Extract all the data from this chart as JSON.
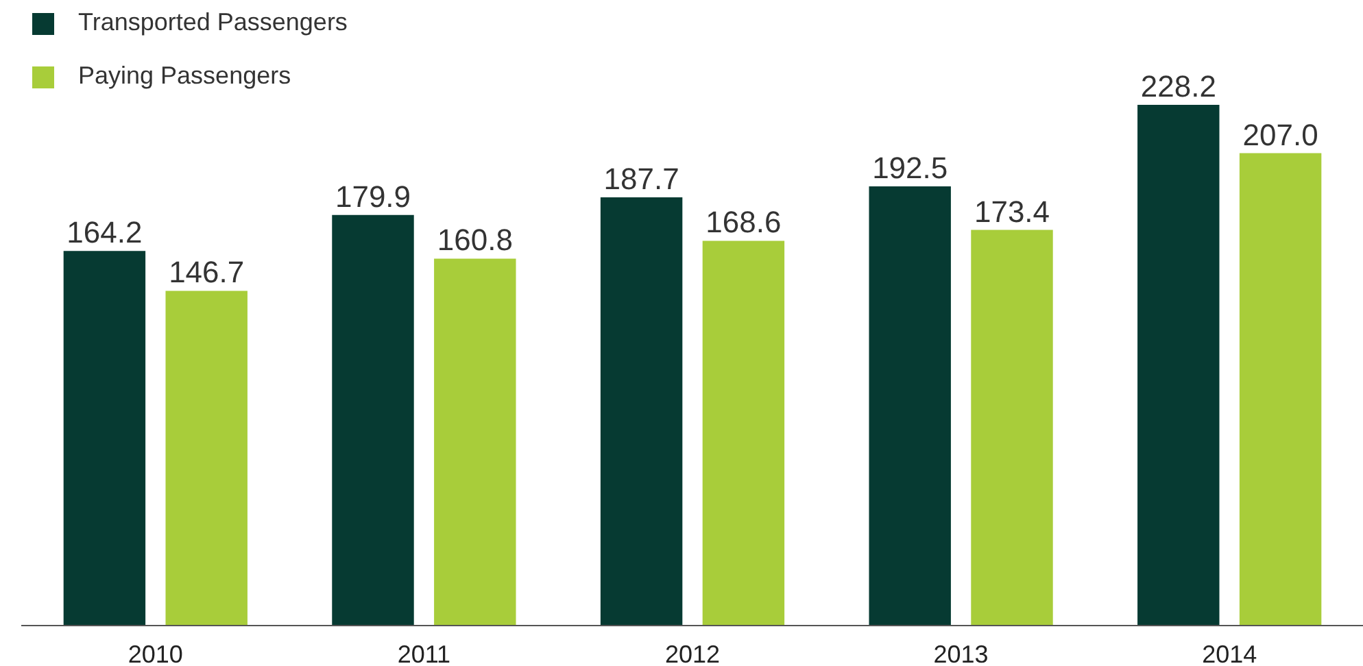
{
  "chart_data": {
    "type": "bar",
    "categories": [
      "2010",
      "2011",
      "2012",
      "2013",
      "2014"
    ],
    "series": [
      {
        "name": "Transported Passengers",
        "color": "#063a32",
        "values": [
          164.2,
          179.9,
          187.7,
          192.5,
          228.2
        ],
        "value_labels": [
          "164.2",
          "179.9",
          "187.7",
          "192.5",
          "228.2"
        ]
      },
      {
        "name": "Paying Passengers",
        "color": "#a8cd3a",
        "values": [
          146.7,
          160.8,
          168.6,
          173.4,
          207.0
        ],
        "value_labels": [
          "146.7",
          "160.8",
          "168.6",
          "173.4",
          "207.0"
        ]
      }
    ],
    "legend": "top left",
    "grid": false
  }
}
